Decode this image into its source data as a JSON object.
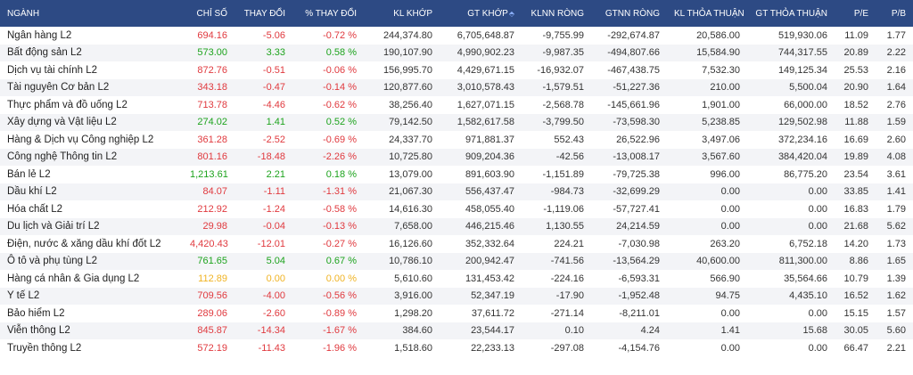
{
  "headers": {
    "name": "NGÀNH",
    "index": "CHỈ SỐ",
    "change": "THAY ĐỔI",
    "pct_change": "% THAY ĐỔI",
    "kl_khop": "KL KHỚP",
    "gt_khop": "GT KHỚP",
    "klnn_rong": "KLNN RÒNG",
    "gtnn_rong": "GTNN RÒNG",
    "kl_thoa_thuan": "KL THỎA THUẬN",
    "gt_thoa_thuan": "GT THỎA THUẬN",
    "pe": "P/E",
    "pb": "P/B"
  },
  "colors": {
    "header_bg": "#2d4a84",
    "up": "#1da31d",
    "down": "#e0393e",
    "ref": "#f0b323"
  },
  "rows": [
    {
      "name": "Ngân hàng L2",
      "index": "694.16",
      "change": "-5.06",
      "pct": "-0.72 %",
      "kl": "244,374.80",
      "gt": "6,705,648.87",
      "klnn": "-9,755.99",
      "gtnn": "-292,674.87",
      "kltt": "20,586.00",
      "gttt": "519,930.06",
      "pe": "11.09",
      "pb": "1.77",
      "trend": "down"
    },
    {
      "name": "Bất động sản L2",
      "index": "573.00",
      "change": "3.33",
      "pct": "0.58 %",
      "kl": "190,107.90",
      "gt": "4,990,902.23",
      "klnn": "-9,987.35",
      "gtnn": "-494,807.66",
      "kltt": "15,584.90",
      "gttt": "744,317.55",
      "pe": "20.89",
      "pb": "2.22",
      "trend": "up"
    },
    {
      "name": "Dịch vụ tài chính L2",
      "index": "872.76",
      "change": "-0.51",
      "pct": "-0.06 %",
      "kl": "156,995.70",
      "gt": "4,429,671.15",
      "klnn": "-16,932.07",
      "gtnn": "-467,438.75",
      "kltt": "7,532.30",
      "gttt": "149,125.34",
      "pe": "25.53",
      "pb": "2.16",
      "trend": "down"
    },
    {
      "name": "Tài nguyên Cơ bản L2",
      "index": "343.18",
      "change": "-0.47",
      "pct": "-0.14 %",
      "kl": "120,877.60",
      "gt": "3,010,578.43",
      "klnn": "-1,579.51",
      "gtnn": "-51,227.36",
      "kltt": "210.00",
      "gttt": "5,500.04",
      "pe": "20.90",
      "pb": "1.64",
      "trend": "down"
    },
    {
      "name": "Thực phẩm và đồ uống L2",
      "index": "713.78",
      "change": "-4.46",
      "pct": "-0.62 %",
      "kl": "38,256.40",
      "gt": "1,627,071.15",
      "klnn": "-2,568.78",
      "gtnn": "-145,661.96",
      "kltt": "1,901.00",
      "gttt": "66,000.00",
      "pe": "18.52",
      "pb": "2.76",
      "trend": "down"
    },
    {
      "name": "Xây dựng và Vật liệu L2",
      "index": "274.02",
      "change": "1.41",
      "pct": "0.52 %",
      "kl": "79,142.50",
      "gt": "1,582,617.58",
      "klnn": "-3,799.50",
      "gtnn": "-73,598.30",
      "kltt": "5,238.85",
      "gttt": "129,502.98",
      "pe": "11.88",
      "pb": "1.59",
      "trend": "up"
    },
    {
      "name": "Hàng & Dịch vụ Công nghiệp L2",
      "index": "361.28",
      "change": "-2.52",
      "pct": "-0.69 %",
      "kl": "24,337.70",
      "gt": "971,881.37",
      "klnn": "552.43",
      "gtnn": "26,522.96",
      "kltt": "3,497.06",
      "gttt": "372,234.16",
      "pe": "16.69",
      "pb": "2.60",
      "trend": "down"
    },
    {
      "name": "Công nghệ Thông tin L2",
      "index": "801.16",
      "change": "-18.48",
      "pct": "-2.26 %",
      "kl": "10,725.80",
      "gt": "909,204.36",
      "klnn": "-42.56",
      "gtnn": "-13,008.17",
      "kltt": "3,567.60",
      "gttt": "384,420.04",
      "pe": "19.89",
      "pb": "4.08",
      "trend": "down"
    },
    {
      "name": "Bán lẻ L2",
      "index": "1,213.61",
      "change": "2.21",
      "pct": "0.18 %",
      "kl": "13,079.00",
      "gt": "891,603.90",
      "klnn": "-1,151.89",
      "gtnn": "-79,725.38",
      "kltt": "996.00",
      "gttt": "86,775.20",
      "pe": "23.54",
      "pb": "3.61",
      "trend": "up"
    },
    {
      "name": "Dầu khí L2",
      "index": "84.07",
      "change": "-1.11",
      "pct": "-1.31 %",
      "kl": "21,067.30",
      "gt": "556,437.47",
      "klnn": "-984.73",
      "gtnn": "-32,699.29",
      "kltt": "0.00",
      "gttt": "0.00",
      "pe": "33.85",
      "pb": "1.41",
      "trend": "down"
    },
    {
      "name": "Hóa chất L2",
      "index": "212.92",
      "change": "-1.24",
      "pct": "-0.58 %",
      "kl": "14,616.30",
      "gt": "458,055.40",
      "klnn": "-1,119.06",
      "gtnn": "-57,727.41",
      "kltt": "0.00",
      "gttt": "0.00",
      "pe": "16.83",
      "pb": "1.79",
      "trend": "down"
    },
    {
      "name": "Du lịch và Giải trí L2",
      "index": "29.98",
      "change": "-0.04",
      "pct": "-0.13 %",
      "kl": "7,658.00",
      "gt": "446,215.46",
      "klnn": "1,130.55",
      "gtnn": "24,214.59",
      "kltt": "0.00",
      "gttt": "0.00",
      "pe": "21.68",
      "pb": "5.62",
      "trend": "down"
    },
    {
      "name": "Điện, nước & xăng dầu khí đốt L2",
      "index": "4,420.43",
      "change": "-12.01",
      "pct": "-0.27 %",
      "kl": "16,126.60",
      "gt": "352,332.64",
      "klnn": "224.21",
      "gtnn": "-7,030.98",
      "kltt": "263.20",
      "gttt": "6,752.18",
      "pe": "14.20",
      "pb": "1.73",
      "trend": "down"
    },
    {
      "name": "Ô tô và phụ tùng L2",
      "index": "761.65",
      "change": "5.04",
      "pct": "0.67 %",
      "kl": "10,786.10",
      "gt": "200,942.47",
      "klnn": "-741.56",
      "gtnn": "-13,564.29",
      "kltt": "40,600.00",
      "gttt": "811,300.00",
      "pe": "8.86",
      "pb": "1.65",
      "trend": "up"
    },
    {
      "name": "Hàng cá nhân & Gia dụng L2",
      "index": "112.89",
      "change": "0.00",
      "pct": "0.00 %",
      "kl": "5,610.60",
      "gt": "131,453.42",
      "klnn": "-224.16",
      "gtnn": "-6,593.31",
      "kltt": "566.90",
      "gttt": "35,564.66",
      "pe": "10.79",
      "pb": "1.39",
      "trend": "ref"
    },
    {
      "name": "Y tế L2",
      "index": "709.56",
      "change": "-4.00",
      "pct": "-0.56 %",
      "kl": "3,916.00",
      "gt": "52,347.19",
      "klnn": "-17.90",
      "gtnn": "-1,952.48",
      "kltt": "94.75",
      "gttt": "4,435.10",
      "pe": "16.52",
      "pb": "1.62",
      "trend": "down"
    },
    {
      "name": "Bảo hiểm L2",
      "index": "289.06",
      "change": "-2.60",
      "pct": "-0.89 %",
      "kl": "1,298.20",
      "gt": "37,611.72",
      "klnn": "-271.14",
      "gtnn": "-8,211.01",
      "kltt": "0.00",
      "gttt": "0.00",
      "pe": "15.15",
      "pb": "1.57",
      "trend": "down"
    },
    {
      "name": "Viễn thông L2",
      "index": "845.87",
      "change": "-14.34",
      "pct": "-1.67 %",
      "kl": "384.60",
      "gt": "23,544.17",
      "klnn": "0.10",
      "gtnn": "4.24",
      "kltt": "1.41",
      "gttt": "15.68",
      "pe": "30.05",
      "pb": "5.60",
      "trend": "down"
    },
    {
      "name": "Truyền thông L2",
      "index": "572.19",
      "change": "-11.43",
      "pct": "-1.96 %",
      "kl": "1,518.60",
      "gt": "22,233.13",
      "klnn": "-297.08",
      "gtnn": "-4,154.76",
      "kltt": "0.00",
      "gttt": "0.00",
      "pe": "66.47",
      "pb": "2.21",
      "trend": "down"
    }
  ]
}
